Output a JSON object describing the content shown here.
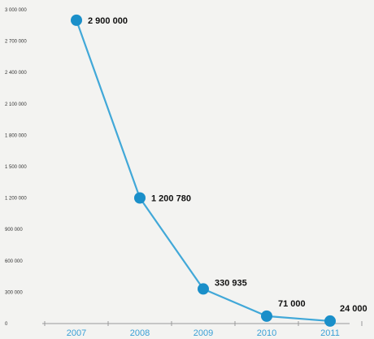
{
  "chart_data": {
    "type": "line",
    "categories": [
      "2007",
      "2008",
      "2009",
      "2010",
      "2011"
    ],
    "series": [
      {
        "values": [
          2900000,
          1200780,
          330935,
          71000,
          24000
        ]
      }
    ],
    "data_labels": [
      "2 900 000",
      "1 200 780",
      "330 935",
      "71 000",
      "24 000"
    ],
    "yticks": [
      {
        "value": 3000000,
        "label": "3 000 000"
      },
      {
        "value": 2700000,
        "label": "2 700 000"
      },
      {
        "value": 2400000,
        "label": "2 400 000"
      },
      {
        "value": 2100000,
        "label": "2 100 000"
      },
      {
        "value": 1800000,
        "label": "1 800 000"
      },
      {
        "value": 1500000,
        "label": "1 500 000"
      },
      {
        "value": 1200000,
        "label": "1 200 000"
      },
      {
        "value": 900000,
        "label": "900 000"
      },
      {
        "value": 600000,
        "label": "600 000"
      },
      {
        "value": 300000,
        "label": "300 000"
      },
      {
        "value": 0,
        "label": "0"
      }
    ],
    "ylim": [
      0,
      3000000
    ],
    "grid": false,
    "colors": {
      "line": "#41a8d8",
      "marker": "#1a8fc9",
      "xtick": "#3aa0d6",
      "axis": "#9a9a9a",
      "background": "#f3f3f1"
    }
  }
}
